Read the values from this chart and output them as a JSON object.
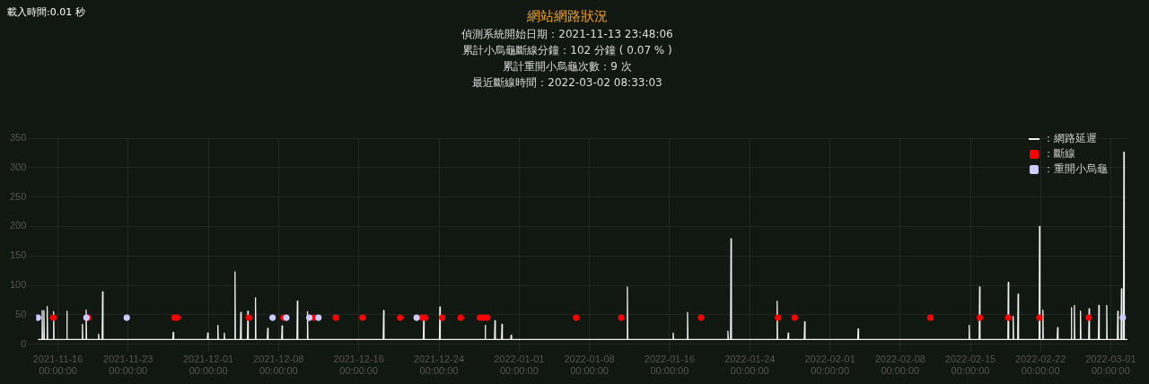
{
  "chart_data": {
    "type": "line",
    "title": "網站網路狀況",
    "subtitle": "偵測系統開始日期：2021-11-13 23:48:06",
    "annotations": [
      "載入時間:0.01 秒",
      "累計小烏龜斷線分鐘：102 分鐘 ( 0.07 % )",
      "累計重開小烏龜次數：9 次",
      "最近斷線時間：2022-03-02 08:33:03"
    ],
    "xlim": [
      "2021-11-13T20:00",
      "2022-03-02T16:00"
    ],
    "xticks": [
      {
        "value": "2021-11-16",
        "label": "2021-11-16 00:00:00"
      },
      {
        "value": "2021-11-23",
        "label": "2021-11-23 00:00:00"
      },
      {
        "value": "2021-12-01",
        "label": "2021-12-01 00:00:00"
      },
      {
        "value": "2021-12-08",
        "label": "2021-12-08 00:00:00"
      },
      {
        "value": "2021-12-16",
        "label": "2021-12-16 00:00:00"
      },
      {
        "value": "2021-12-24",
        "label": "2021-12-24 00:00:00"
      },
      {
        "value": "2022-01-01",
        "label": "2022-01-01 00:00:00"
      },
      {
        "value": "2022-01-08",
        "label": "2022-01-08 00:00:00"
      },
      {
        "value": "2022-01-16",
        "label": "2022-01-16 00:00:00"
      },
      {
        "value": "2022-01-24",
        "label": "2022-01-24 00:00:00"
      },
      {
        "value": "2022-02-01",
        "label": "2022-02-01 00:00:00"
      },
      {
        "value": "2022-02-08",
        "label": "2022-02-08 00:00:00"
      },
      {
        "value": "2022-02-15",
        "label": "2022-02-15 00:00:00"
      },
      {
        "value": "2022-02-22",
        "label": "2022-02-22 00:00:00"
      },
      {
        "value": "2022-03-01",
        "label": "2022-03-01 00:00:00"
      }
    ],
    "ylim": [
      0,
      350
    ],
    "yticks": [
      0,
      50,
      100,
      150,
      200,
      250,
      300,
      350
    ],
    "grid": true,
    "legend": "top right",
    "series": [
      {
        "name": "：網路延遲",
        "marker": "none",
        "color": "#f0f0f0",
        "x": [
          "2021-11-14T00:00",
          "2021-11-14T09:10",
          "2021-11-14T10:10",
          "2021-11-14T11:10",
          "2021-11-14T13:25",
          "2021-11-14T14:25",
          "2021-11-14T15:25",
          "2021-11-14T21:20",
          "2021-11-14T22:20",
          "2021-11-14T23:20",
          "2021-11-15T12:40",
          "2021-11-15T13:40",
          "2021-11-15T14:40",
          "2021-11-16T20:20",
          "2021-11-16T21:20",
          "2021-11-16T22:20",
          "2021-11-18T09:35",
          "2021-11-18T10:35",
          "2021-11-18T11:35",
          "2021-11-18T18:30",
          "2021-11-18T19:30",
          "2021-11-18T20:30",
          "2021-11-20T00:20",
          "2021-11-20T01:20",
          "2021-11-20T02:20",
          "2021-11-20T09:50",
          "2021-11-20T10:50",
          "2021-11-20T11:50",
          "2021-11-27T11:00",
          "2021-11-27T12:00",
          "2021-11-27T13:00",
          "2021-11-30T21:35",
          "2021-11-30T22:35",
          "2021-11-30T23:35",
          "2021-12-01T21:50",
          "2021-12-01T22:50",
          "2021-12-01T23:50",
          "2021-12-02T13:10",
          "2021-12-02T14:10",
          "2021-12-02T15:10",
          "2021-12-03T14:50",
          "2021-12-03T15:50",
          "2021-12-03T16:50",
          "2021-12-04T04:45",
          "2021-12-04T05:45",
          "2021-12-04T06:45",
          "2021-12-04T21:35",
          "2021-12-04T22:35",
          "2021-12-04T23:35",
          "2021-12-05T15:50",
          "2021-12-05T16:50",
          "2021-12-05T17:50",
          "2021-12-06T21:05",
          "2021-12-06T22:05",
          "2021-12-06T23:05",
          "2021-12-08T07:25",
          "2021-12-08T08:25",
          "2021-12-08T09:25",
          "2021-12-09T20:05",
          "2021-12-09T21:05",
          "2021-12-09T22:05",
          "2021-12-10T20:20",
          "2021-12-10T21:20",
          "2021-12-10T22:20",
          "2021-12-18T10:30",
          "2021-12-18T11:30",
          "2021-12-18T12:30",
          "2021-12-22T10:30",
          "2021-12-22T11:30",
          "2021-12-22T12:30",
          "2021-12-24T01:10",
          "2021-12-24T02:10",
          "2021-12-24T03:10",
          "2021-12-28T13:40",
          "2021-12-28T14:40",
          "2021-12-28T15:40",
          "2021-12-29T13:00",
          "2021-12-29T14:00",
          "2021-12-29T15:00",
          "2021-12-30T05:45",
          "2021-12-30T06:45",
          "2021-12-30T07:45",
          "2021-12-31T03:50",
          "2021-12-31T04:50",
          "2021-12-31T05:50",
          "2022-01-11T18:00",
          "2022-01-11T19:00",
          "2022-01-11T20:00",
          "2022-01-16T07:40",
          "2022-01-16T08:40",
          "2022-01-16T09:40",
          "2022-01-17T18:00",
          "2022-01-17T19:00",
          "2022-01-17T20:00",
          "2022-01-21T18:40",
          "2022-01-21T19:40",
          "2022-01-21T20:40",
          "2022-01-22T02:00",
          "2022-01-22T03:00",
          "2022-01-22T04:00",
          "2022-01-26T16:30",
          "2022-01-26T17:30",
          "2022-01-26T18:30",
          "2022-01-27T19:00",
          "2022-01-27T20:00",
          "2022-01-27T21:00",
          "2022-01-29T10:20",
          "2022-01-29T11:20",
          "2022-01-29T12:20",
          "2022-02-03T18:25",
          "2022-02-03T19:25",
          "2022-02-03T20:25",
          "2022-02-14T20:10",
          "2022-02-14T21:10",
          "2022-02-14T22:10",
          "2022-02-15T21:05",
          "2022-02-15T22:05",
          "2022-02-15T23:05",
          "2022-02-18T17:45",
          "2022-02-18T18:45",
          "2022-02-18T19:45",
          "2022-02-19T05:30",
          "2022-02-19T06:30",
          "2022-02-19T07:30",
          "2022-02-19T17:15",
          "2022-02-19T18:15",
          "2022-02-19T19:15",
          "2022-02-21T20:35",
          "2022-02-21T21:35",
          "2022-02-21T22:35",
          "2022-02-22T04:35",
          "2022-02-22T05:35",
          "2022-02-22T06:35",
          "2022-02-23T15:50",
          "2022-02-23T16:50",
          "2022-02-23T17:50",
          "2022-02-25T00:40",
          "2022-02-25T01:40",
          "2022-02-25T02:40",
          "2022-02-25T08:00",
          "2022-02-25T09:00",
          "2022-02-25T10:00",
          "2022-02-25T22:35",
          "2022-02-25T23:35",
          "2022-02-26T00:35",
          "2022-02-26T19:10",
          "2022-02-26T20:10",
          "2022-02-26T21:10",
          "2022-02-27T18:30",
          "2022-02-27T19:30",
          "2022-02-27T20:30",
          "2022-02-28T13:25",
          "2022-02-28T14:25",
          "2022-02-28T15:25",
          "2022-03-01T15:50",
          "2022-03-01T16:50",
          "2022-03-01T17:50",
          "2022-03-02T00:40",
          "2022-03-02T01:40",
          "2022-03-02T02:40",
          "2022-03-02T06:25",
          "2022-03-02T07:25",
          "2022-03-02T08:25",
          "2022-03-02T16:00"
        ],
        "values": [
          8,
          8,
          57,
          8,
          8,
          57,
          8,
          8,
          64,
          8,
          8,
          55,
          8,
          8,
          56,
          8,
          8,
          34,
          8,
          8,
          58,
          8,
          8,
          17,
          8,
          8,
          89,
          8,
          8,
          20,
          8,
          8,
          19,
          8,
          8,
          32,
          8,
          8,
          19,
          8,
          8,
          123,
          8,
          8,
          54,
          8,
          8,
          56,
          8,
          8,
          79,
          8,
          8,
          27,
          8,
          8,
          31,
          8,
          8,
          73,
          8,
          8,
          55,
          8,
          8,
          57,
          8,
          8,
          42,
          8,
          8,
          63,
          8,
          8,
          32,
          8,
          8,
          40,
          8,
          8,
          34,
          8,
          8,
          15,
          8,
          8,
          97,
          8,
          8,
          19,
          8,
          8,
          54,
          8,
          8,
          22,
          8,
          8,
          179,
          8,
          8,
          73,
          8,
          8,
          19,
          8,
          8,
          38,
          8,
          8,
          26,
          8,
          8,
          32,
          8,
          8,
          97,
          8,
          8,
          105,
          8,
          8,
          47,
          8,
          8,
          85,
          8,
          8,
          200,
          8,
          8,
          58,
          8,
          8,
          28,
          8,
          8,
          62,
          8,
          8,
          66,
          8,
          8,
          56,
          8,
          8,
          60,
          8,
          8,
          66,
          8,
          8,
          66,
          8,
          8,
          56,
          8,
          8,
          94,
          8,
          8,
          326,
          8,
          8
        ]
      },
      {
        "name": "：斷線",
        "type": "scatter",
        "marker": "circle",
        "color": "#ff0000",
        "x": [
          "2021-11-15T13:00",
          "2021-11-19T00:30",
          "2021-11-27T15:00",
          "2021-11-27T21:30",
          "2021-12-05T01:00",
          "2021-12-08T12:00",
          "2021-12-11T12:40",
          "2021-12-13T17:00",
          "2021-12-16T09:00",
          "2021-12-20T03:00",
          "2021-12-22T07:40",
          "2021-12-22T14:30",
          "2021-12-24T08:00",
          "2021-12-26T04:00",
          "2021-12-28T02:00",
          "2021-12-28T11:00",
          "2021-12-28T19:40",
          "2022-01-06T16:30",
          "2022-01-11T04:20",
          "2022-01-19T03:20",
          "2022-01-26T19:40",
          "2022-01-28T11:20",
          "2022-02-11T00:15",
          "2022-02-15T22:50",
          "2022-02-18T18:40",
          "2022-02-21T21:20",
          "2022-02-26T19:20"
        ],
        "values": [
          45,
          45,
          45,
          45,
          45,
          45,
          45,
          45,
          45,
          45,
          45,
          45,
          45,
          45,
          45,
          45,
          45,
          45,
          45,
          45,
          45,
          45,
          45,
          45,
          45,
          45,
          45
        ]
      },
      {
        "name": "：重開小烏龜",
        "type": "scatter",
        "marker": "circle",
        "color": "#ccccff",
        "x": [
          "2021-11-14T00:00",
          "2021-11-18T20:10",
          "2021-11-22T20:40",
          "2021-12-07T09:50",
          "2021-12-08T18:40",
          "2021-12-11T01:40",
          "2021-12-11T23:30",
          "2021-12-21T18:30",
          "2022-03-02T05:00"
        ],
        "values": [
          45,
          45,
          45,
          45,
          45,
          45,
          45,
          45,
          45
        ]
      }
    ]
  }
}
